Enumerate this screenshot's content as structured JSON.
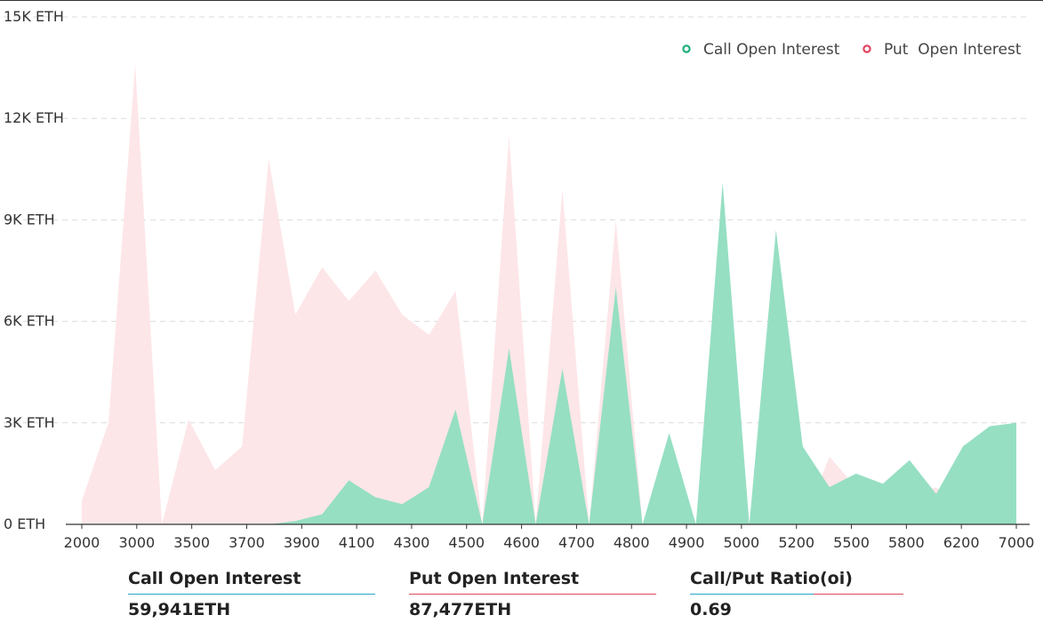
{
  "chart_data": {
    "type": "area",
    "title": "",
    "xlabel": "",
    "ylabel": "",
    "y_unit": "ETH",
    "ylim": [
      0,
      15000
    ],
    "y_ticks": [
      {
        "value": 0,
        "label": "0 ETH"
      },
      {
        "value": 3000,
        "label": "3K ETH"
      },
      {
        "value": 6000,
        "label": "6K ETH"
      },
      {
        "value": 9000,
        "label": "9K ETH"
      },
      {
        "value": 12000,
        "label": "12K ETH"
      },
      {
        "value": 15000,
        "label": "15K ETH"
      }
    ],
    "x_tick_labels": [
      "2000",
      "3000",
      "3500",
      "3700",
      "3900",
      "4100",
      "4300",
      "4500",
      "4600",
      "4700",
      "4800",
      "4900",
      "5000",
      "5200",
      "5500",
      "5800",
      "6200",
      "7000"
    ],
    "legend_position": "top-right",
    "series": [
      {
        "name": "Put  Open Interest",
        "color": "#fde6e8",
        "marker_color": "#e0455f",
        "values": [
          700,
          3000,
          13600,
          0,
          3100,
          1600,
          2300,
          10800,
          6200,
          7600,
          6600,
          7500,
          6200,
          5600,
          6900,
          0,
          11500,
          0,
          9900,
          0,
          9000,
          0,
          2500,
          0,
          3700,
          0,
          3200,
          0,
          2000,
          1100,
          1000,
          800,
          1100,
          400,
          700,
          100
        ]
      },
      {
        "name": "Call Open Interest",
        "color": "#96dfc3",
        "marker_color": "#1fb07a",
        "values": [
          0,
          0,
          0,
          0,
          0,
          0,
          0,
          0,
          100,
          300,
          1300,
          800,
          600,
          1100,
          3400,
          0,
          5200,
          0,
          4600,
          0,
          7000,
          0,
          2700,
          0,
          10100,
          0,
          8700,
          2300,
          1100,
          1500,
          1200,
          1900,
          900,
          2300,
          2900,
          3000
        ]
      }
    ]
  },
  "summary": [
    {
      "label": "Call Open Interest",
      "value": "59,941ETH"
    },
    {
      "label": "Put Open Interest",
      "value": "87,477ETH"
    },
    {
      "label": "Call/Put Ratio(oi)",
      "value": "0.69"
    }
  ]
}
